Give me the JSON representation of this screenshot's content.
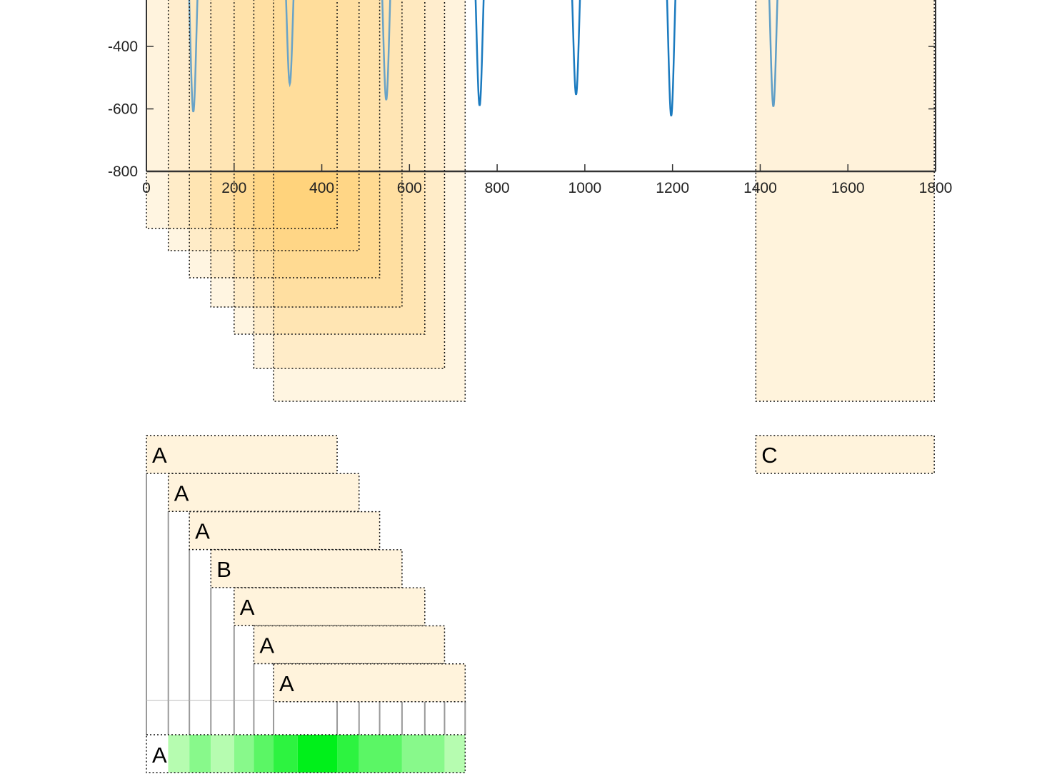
{
  "chart_data": {
    "type": "line",
    "title": "",
    "xlabel": "",
    "ylabel": "",
    "xlim": [
      0,
      1800
    ],
    "ylim": [
      -800,
      0
    ],
    "x_ticks": [
      0,
      200,
      400,
      600,
      800,
      1000,
      1200,
      1400,
      1600,
      1800
    ],
    "y_ticks": [
      -400,
      -600,
      -800
    ],
    "grid": false,
    "colors": {
      "signal": "#1a7abf",
      "window_fill": "#fff3dc",
      "window_border": "#111111",
      "connector": "#999999",
      "heatmap_ramp": [
        "#e3ffd6",
        "#00f01a"
      ]
    },
    "series": [
      {
        "dips": [
          {
            "x": 107,
            "min": -610
          },
          {
            "x": 327,
            "min": -520
          },
          {
            "x": 547,
            "min": -572
          },
          {
            "x": 760,
            "min": -590
          },
          {
            "x": 980,
            "min": -555
          },
          {
            "x": 1197,
            "min": -623
          },
          {
            "x": 1430,
            "min": -593
          }
        ]
      }
    ],
    "windows": [
      {
        "label": "A",
        "x_start": 0,
        "x_end": 435
      },
      {
        "label": "A",
        "x_start": 50,
        "x_end": 485
      },
      {
        "label": "A",
        "x_start": 98,
        "x_end": 532
      },
      {
        "label": "B",
        "x_start": 147,
        "x_end": 583
      },
      {
        "label": "A",
        "x_start": 200,
        "x_end": 635
      },
      {
        "label": "A",
        "x_start": 245,
        "x_end": 680
      },
      {
        "label": "A",
        "x_start": 290,
        "x_end": 727
      },
      {
        "label": "C",
        "x_start": 1390,
        "x_end": 1797
      }
    ],
    "consensus": {
      "label": "A",
      "coverage_boundaries": [
        0,
        50,
        98,
        147,
        200,
        245,
        290,
        345,
        435,
        485,
        583,
        680,
        727
      ],
      "coverage_counts": [
        1,
        2,
        3,
        2,
        3,
        4,
        5,
        6,
        5,
        4,
        3,
        2
      ]
    }
  }
}
